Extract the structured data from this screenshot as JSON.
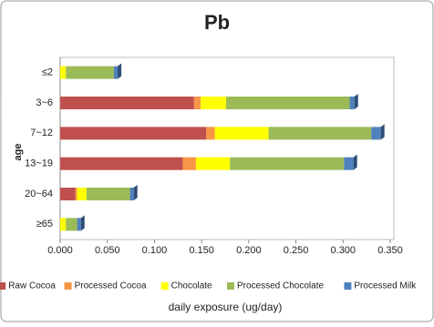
{
  "chart_data": {
    "type": "stacked-barh",
    "title": "Pb",
    "xlabel": "daily exposure (ug/day)",
    "ylabel": "age",
    "categories": [
      "≤2",
      "3~6",
      "7~12",
      "13~19",
      "20~64",
      "≥65"
    ],
    "series": [
      {
        "name": "Raw Cocoa",
        "color": "#c0504d",
        "values": [
          0,
          0.142,
          0.155,
          0.13,
          0.016,
          0
        ]
      },
      {
        "name": "Processed Cocoa",
        "color": "#f79646",
        "values": [
          0,
          0.007,
          0.009,
          0.014,
          0.002,
          0
        ]
      },
      {
        "name": "Chocolate",
        "color": "#ffff00",
        "values": [
          0.006,
          0.027,
          0.057,
          0.036,
          0.01,
          0.006
        ]
      },
      {
        "name": "Processed Chocolate",
        "color": "#9bbb59",
        "values": [
          0.051,
          0.131,
          0.109,
          0.121,
          0.046,
          0.012
        ]
      },
      {
        "name": "Processed Milk",
        "color": "#4f81bd",
        "values": [
          0.004,
          0.005,
          0.01,
          0.01,
          0.004,
          0.004
        ]
      }
    ],
    "xlim": [
      0,
      0.35
    ],
    "xticks": [
      {
        "value": 0,
        "label": "0.000"
      },
      {
        "value": 0.05,
        "label": "0.050"
      },
      {
        "value": 0.1,
        "label": "0.100"
      },
      {
        "value": 0.15,
        "label": "0.150"
      },
      {
        "value": 0.2,
        "label": "0.200"
      },
      {
        "value": 0.25,
        "label": "0.250"
      },
      {
        "value": 0.3,
        "label": "0.300"
      },
      {
        "value": 0.35,
        "label": "0.350"
      }
    ],
    "grid": false,
    "legend": "bottom"
  }
}
